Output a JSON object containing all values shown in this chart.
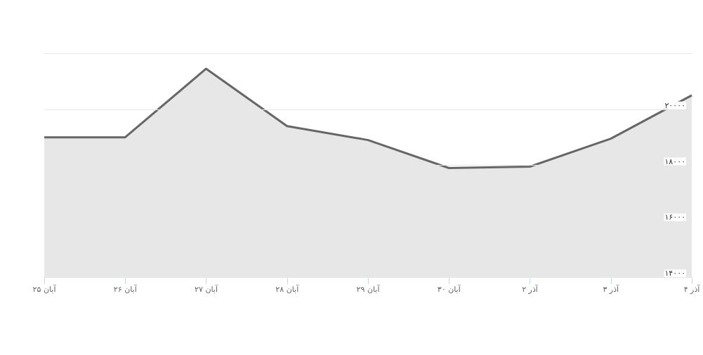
{
  "chart_data": {
    "type": "area",
    "categories": [
      "آبان ۲۵",
      "آبان ۲۶",
      "آبان ۲۷",
      "آبان ۲۸",
      "آبان ۲۹",
      "آبان ۳۰",
      "آذر ۲",
      "آذر ۳",
      "آذر ۴"
    ],
    "series": [
      {
        "color": "#666666",
        "values": [
          19000,
          19000,
          21450,
          19400,
          18900,
          17900,
          17950,
          18950,
          20500
        ]
      }
    ],
    "ylim": [
      14000,
      22000
    ],
    "yticks": [
      {
        "value": 14000,
        "label": "۱۴۰۰۰"
      },
      {
        "value": 16000,
        "label": "۱۶۰۰۰"
      },
      {
        "value": 18000,
        "label": "۱۸۰۰۰"
      },
      {
        "value": 20000,
        "label": "۲۰۰۰۰"
      },
      {
        "value": 22000,
        "label": null
      }
    ],
    "grid": "y",
    "marker": "none"
  }
}
